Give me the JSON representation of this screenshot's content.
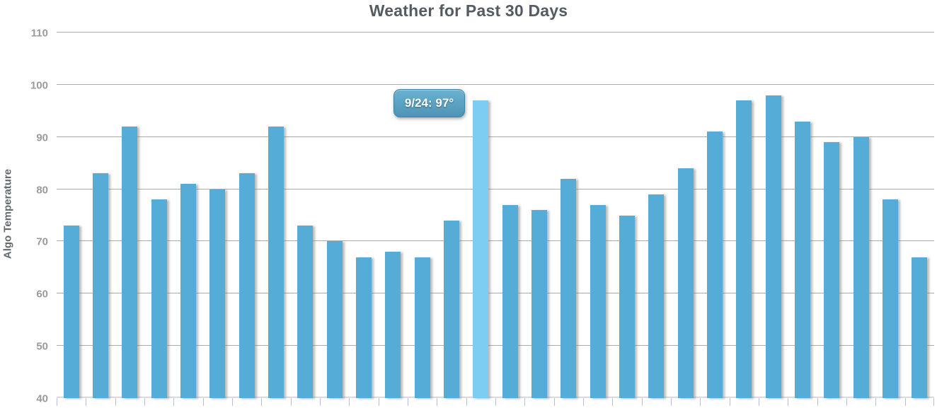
{
  "chart_data": {
    "type": "bar",
    "title": "Weather for Past 30 Days",
    "xlabel": "",
    "ylabel": "Algo Temperature",
    "ylim": [
      40,
      110
    ],
    "yticks": [
      40,
      50,
      60,
      70,
      80,
      90,
      100,
      110
    ],
    "grid": true,
    "legend_position": "none",
    "bar_count": 30,
    "values": [
      73,
      83,
      92,
      78,
      81,
      80,
      83,
      92,
      73,
      70,
      67,
      68,
      67,
      74,
      97,
      77,
      76,
      82,
      77,
      75,
      79,
      84,
      91,
      97,
      98,
      93,
      89,
      90,
      78,
      67
    ],
    "highlighted_index": 14,
    "tooltip": {
      "date": "9/24",
      "value": "97°",
      "text": "9/24: 97°"
    },
    "colors": {
      "bar": "#55acd6",
      "bar_highlight": "#7ccdf0",
      "tooltip_top": "#6ab2d0",
      "tooltip_bottom": "#4e94b6",
      "tooltip_border": "#3e85a5",
      "title_text": "#555b61",
      "axis_title_text": "#64696e",
      "tick_label_text": "#9a9a9a",
      "gridline": "#ababab",
      "baseline": "#cfd0da",
      "x_tick": "#b4c0da"
    }
  }
}
